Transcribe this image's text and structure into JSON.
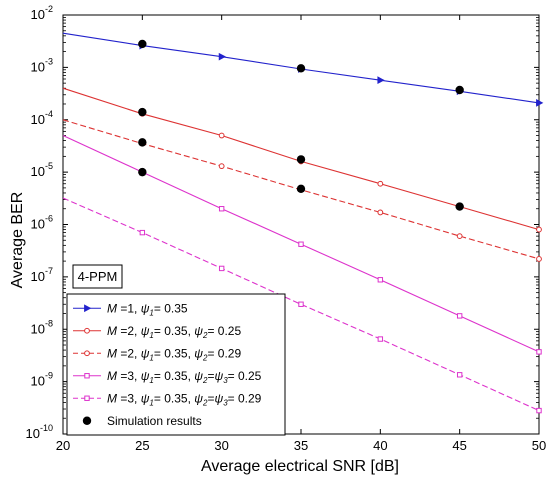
{
  "chart_data": {
    "type": "line",
    "xlabel": "Average electrical SNR [dB]",
    "ylabel": "Average BER",
    "xlim": [
      20,
      50
    ],
    "ylim_exponent": [
      -10,
      -2
    ],
    "y_scale": "log",
    "x_ticks": [
      "20",
      "25",
      "30",
      "35",
      "40",
      "45",
      "50"
    ],
    "y_tick_exponents": [
      "-10",
      "-9",
      "-8",
      "-7",
      "-6",
      "-5",
      "-4",
      "-3",
      "-2"
    ],
    "y_tick_base": "10",
    "grid": false,
    "annotation": "4-PPM",
    "legend_position": "bottom-left",
    "series": [
      {
        "name": "M =1, ψ1= 0.35",
        "legend": {
          "m": "M",
          "m_val": " =1, ",
          "parts": [
            {
              "sym": "ψ",
              "sub": "1",
              "val": "= 0.35"
            }
          ]
        },
        "color": "#2222cc",
        "dash": false,
        "marker": "triangle-right",
        "x": [
          20,
          25,
          30,
          35,
          40,
          45,
          50
        ],
        "y": [
          0.0045,
          0.0026,
          0.0016,
          0.00093,
          0.00057,
          0.00035,
          0.00021
        ]
      },
      {
        "name": "M =2, ψ1= 0.35, ψ2= 0.25",
        "legend": {
          "m": "M",
          "m_val": " =2, ",
          "parts": [
            {
              "sym": "ψ",
              "sub": "1",
              "val": "= 0.35, "
            },
            {
              "sym": "ψ",
              "sub": "2",
              "val": "= 0.25"
            }
          ]
        },
        "color": "#dd3333",
        "dash": false,
        "marker": "circle",
        "x": [
          20,
          25,
          30,
          35,
          40,
          45,
          50
        ],
        "y": [
          0.0004,
          0.00013,
          5e-05,
          1.6e-05,
          6e-06,
          2.2e-06,
          8e-07
        ]
      },
      {
        "name": "M =2, ψ1= 0.35, ψ2= 0.29",
        "legend": {
          "m": "M",
          "m_val": " =2, ",
          "parts": [
            {
              "sym": "ψ",
              "sub": "1",
              "val": "= 0.35, "
            },
            {
              "sym": "ψ",
              "sub": "2",
              "val": "= 0.29"
            }
          ]
        },
        "color": "#dd3333",
        "dash": true,
        "marker": "circle",
        "x": [
          20,
          25,
          30,
          35,
          40,
          45,
          50
        ],
        "y": [
          0.0001,
          3.5e-05,
          1.3e-05,
          4.6e-06,
          1.7e-06,
          6e-07,
          2.2e-07
        ]
      },
      {
        "name": "M =3, ψ1= 0.35, ψ2=ψ3= 0.25",
        "legend": {
          "m": "M",
          "m_val": " =3, ",
          "parts": [
            {
              "sym": "ψ",
              "sub": "1",
              "val": "= 0.35, "
            },
            {
              "sym": "ψ",
              "sub": "2",
              "val": "="
            },
            {
              "sym": "ψ",
              "sub": "3",
              "val": "= 0.25"
            }
          ]
        },
        "color": "#dd33cc",
        "dash": false,
        "marker": "square",
        "x": [
          20,
          25,
          30,
          35,
          40,
          45,
          50
        ],
        "y": [
          5e-05,
          1e-05,
          2e-06,
          4.2e-07,
          8.8e-08,
          1.8e-08,
          3.7e-09
        ]
      },
      {
        "name": "M =3, ψ1= 0.35, ψ2=ψ3= 0.29",
        "legend": {
          "m": "M",
          "m_val": " =3, ",
          "parts": [
            {
              "sym": "ψ",
              "sub": "1",
              "val": "= 0.35, "
            },
            {
              "sym": "ψ",
              "sub": "2",
              "val": "="
            },
            {
              "sym": "ψ",
              "sub": "3",
              "val": "= 0.29"
            }
          ]
        },
        "color": "#dd33cc",
        "dash": true,
        "marker": "square",
        "x": [
          20,
          25,
          30,
          35,
          40,
          45,
          50
        ],
        "y": [
          3.2e-06,
          7e-07,
          1.45e-07,
          3e-08,
          6.5e-09,
          1.35e-09,
          2.8e-10
        ]
      }
    ],
    "simulation": {
      "name": "Simulation results",
      "color": "#000000",
      "x": [
        25,
        35,
        45,
        25,
        35,
        45,
        25,
        35,
        25
      ],
      "y": [
        0.0028,
        0.00096,
        0.00037,
        0.00014,
        1.75e-05,
        2.2e-06,
        3.7e-05,
        4.8e-06,
        1e-05
      ]
    }
  }
}
